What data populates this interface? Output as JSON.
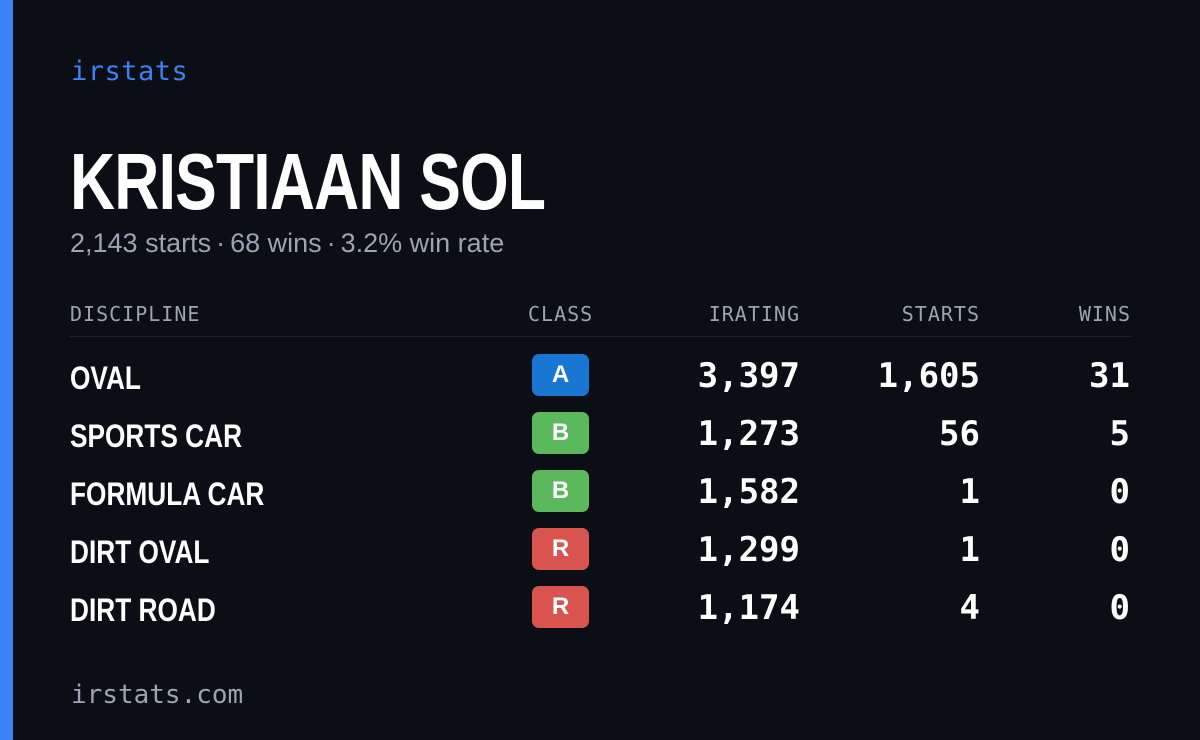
{
  "brand": "irstats",
  "driver": {
    "name": "KRISTIAAN SOL",
    "starts_text": "2,143 starts",
    "wins_text": "68 wins",
    "win_rate_text": "3.2% win rate",
    "separator": "·"
  },
  "table": {
    "headers": {
      "discipline": "DISCIPLINE",
      "class": "CLASS",
      "irating": "IRATING",
      "starts": "STARTS",
      "wins": "WINS"
    },
    "rows": [
      {
        "discipline": "OVAL",
        "class": "A",
        "class_color": "#1976d2",
        "irating": "3,397",
        "starts": "1,605",
        "wins": "31"
      },
      {
        "discipline": "SPORTS CAR",
        "class": "B",
        "class_color": "#5cb85c",
        "irating": "1,273",
        "starts": "56",
        "wins": "5"
      },
      {
        "discipline": "FORMULA CAR",
        "class": "B",
        "class_color": "#5cb85c",
        "irating": "1,582",
        "starts": "1",
        "wins": "0"
      },
      {
        "discipline": "DIRT OVAL",
        "class": "R",
        "class_color": "#d9534f",
        "irating": "1,299",
        "starts": "1",
        "wins": "0"
      },
      {
        "discipline": "DIRT ROAD",
        "class": "R",
        "class_color": "#d9534f",
        "irating": "1,174",
        "starts": "4",
        "wins": "0"
      }
    ]
  },
  "footer": "irstats.com",
  "colors": {
    "accent": "#3b82f6",
    "background": "#0b0e15",
    "muted_text": "#9aa4b2"
  }
}
